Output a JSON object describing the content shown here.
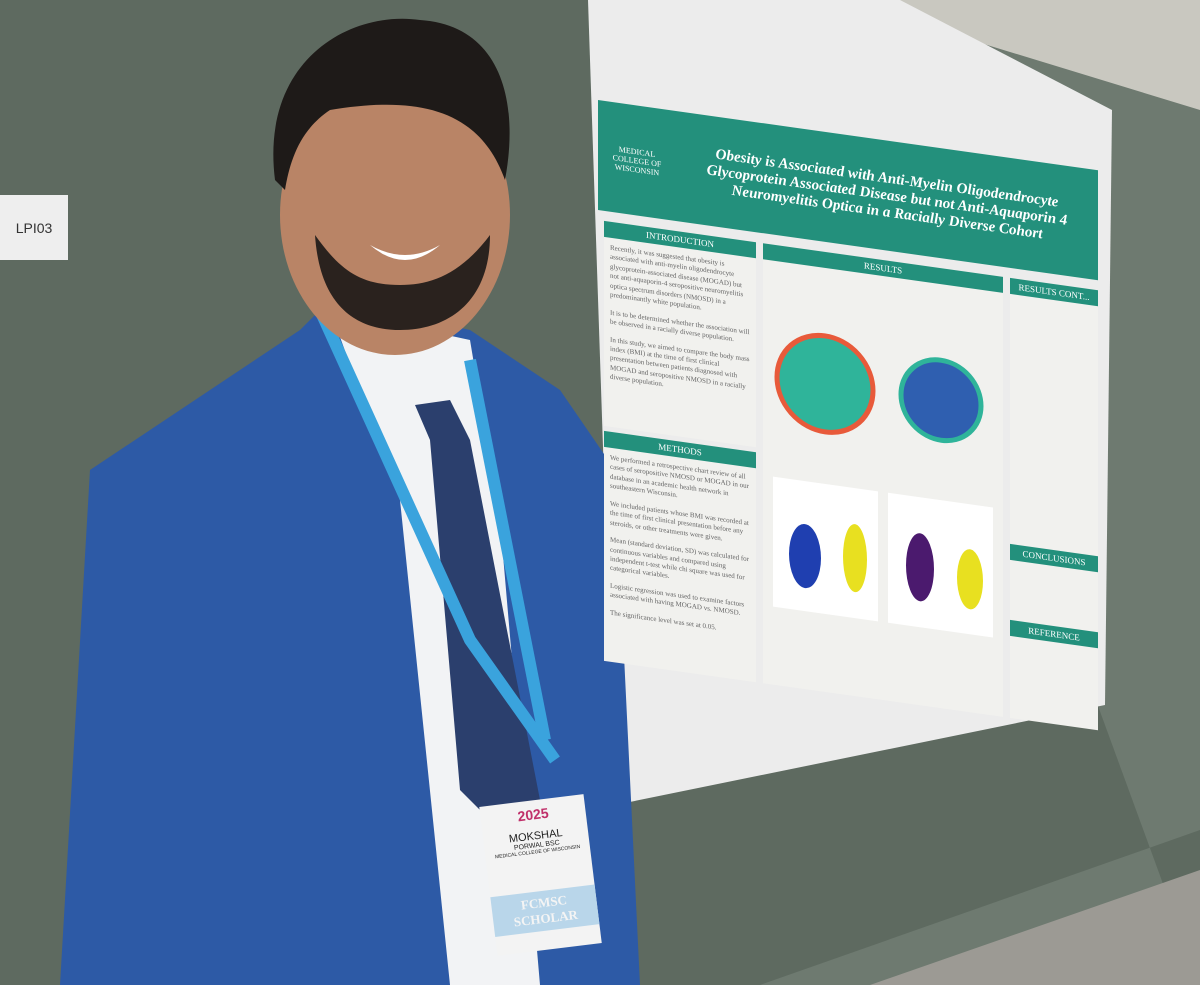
{
  "sign": "LPI03",
  "poster": {
    "logo": "MEDICAL COLLEGE OF WISCONSIN",
    "title": "Obesity is Associated with Anti-Myelin Oligodendrocyte Glycoprotein Associated Disease but not Anti-Aquaporin 4 Neuromyelitis Optica in a Racially Diverse Cohort",
    "sections": [
      {
        "heading": "INTRODUCTION",
        "paragraphs": [
          "Recently, it was suggested that obesity is associated with anti-myelin oligodendrocyte glycoprotein-associated disease (MOGAD) but not anti-aquaporin-4 seropositive neuromyelitis optica spectrum disorders (NMOSD) in a predominantly white population.",
          "It is to be determined whether the association will be observed in a racially diverse population.",
          "In this study, we aimed to compare the body mass index (BMI) at the time of first clinical presentation between patients diagnosed with MOGAD and seropositive NMOSD in a racially diverse population."
        ]
      },
      {
        "heading": "METHODS",
        "paragraphs": [
          "We performed a retrospective chart review of all cases of seropositive NMOSD or MOGAD in our database in an academic health network in southeastern Wisconsin.",
          "We included patients whose BMI was recorded at the time of first clinical presentation before any steroids, or other treatments were given.",
          "Mean (standard deviation, SD) was calculated for continuous variables and compared using independent t-test while chi square was used for categorical variables.",
          "Logistic regression was used to examine factors associated with having MOGAD vs. NMOSD.",
          "The significance level was set at 0.05."
        ]
      }
    ],
    "results": "RESULTS",
    "right_headings": [
      "RESULTS CONT...",
      "CONCLUSIONS",
      "REFERENCE"
    ]
  },
  "badge": {
    "year": "2025",
    "first_name": "MOKSHAL",
    "last_name": "PORWAL BSC",
    "affiliation": "MEDICAL COLLEGE OF WISCONSIN",
    "ribbon": [
      "FCMSC",
      "SCHOLAR"
    ]
  }
}
